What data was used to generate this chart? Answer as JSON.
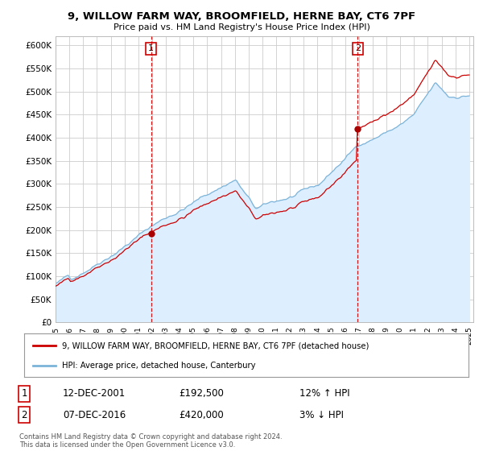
{
  "title": "9, WILLOW FARM WAY, BROOMFIELD, HERNE BAY, CT6 7PF",
  "subtitle": "Price paid vs. HM Land Registry's House Price Index (HPI)",
  "ylabel_ticks": [
    "£0",
    "£50K",
    "£100K",
    "£150K",
    "£200K",
    "£250K",
    "£300K",
    "£350K",
    "£400K",
    "£450K",
    "£500K",
    "£550K",
    "£600K"
  ],
  "ytick_values": [
    0,
    50000,
    100000,
    150000,
    200000,
    250000,
    300000,
    350000,
    400000,
    450000,
    500000,
    550000,
    600000
  ],
  "hpi_color": "#7bb3d9",
  "hpi_fill_color": "#ddeeff",
  "price_color": "#cc0000",
  "marker_color": "#aa0000",
  "vline_color": "#cc0000",
  "background_color": "#ffffff",
  "grid_color": "#cccccc",
  "sale1_date": 2001.92,
  "sale1_price": 192500,
  "sale2_date": 2016.92,
  "sale2_price": 420000,
  "legend_line1": "9, WILLOW FARM WAY, BROOMFIELD, HERNE BAY, CT6 7PF (detached house)",
  "legend_line2": "HPI: Average price, detached house, Canterbury",
  "footer": "Contains HM Land Registry data © Crown copyright and database right 2024.\nThis data is licensed under the Open Government Licence v3.0.",
  "xmin": 1995.0,
  "xmax": 2025.3,
  "ymin": 0,
  "ymax": 620000,
  "table_row1": [
    "1",
    "12-DEC-2001",
    "£192,500",
    "12% ↑ HPI"
  ],
  "table_row2": [
    "2",
    "07-DEC-2016",
    "£420,000",
    "3% ↓ HPI"
  ]
}
